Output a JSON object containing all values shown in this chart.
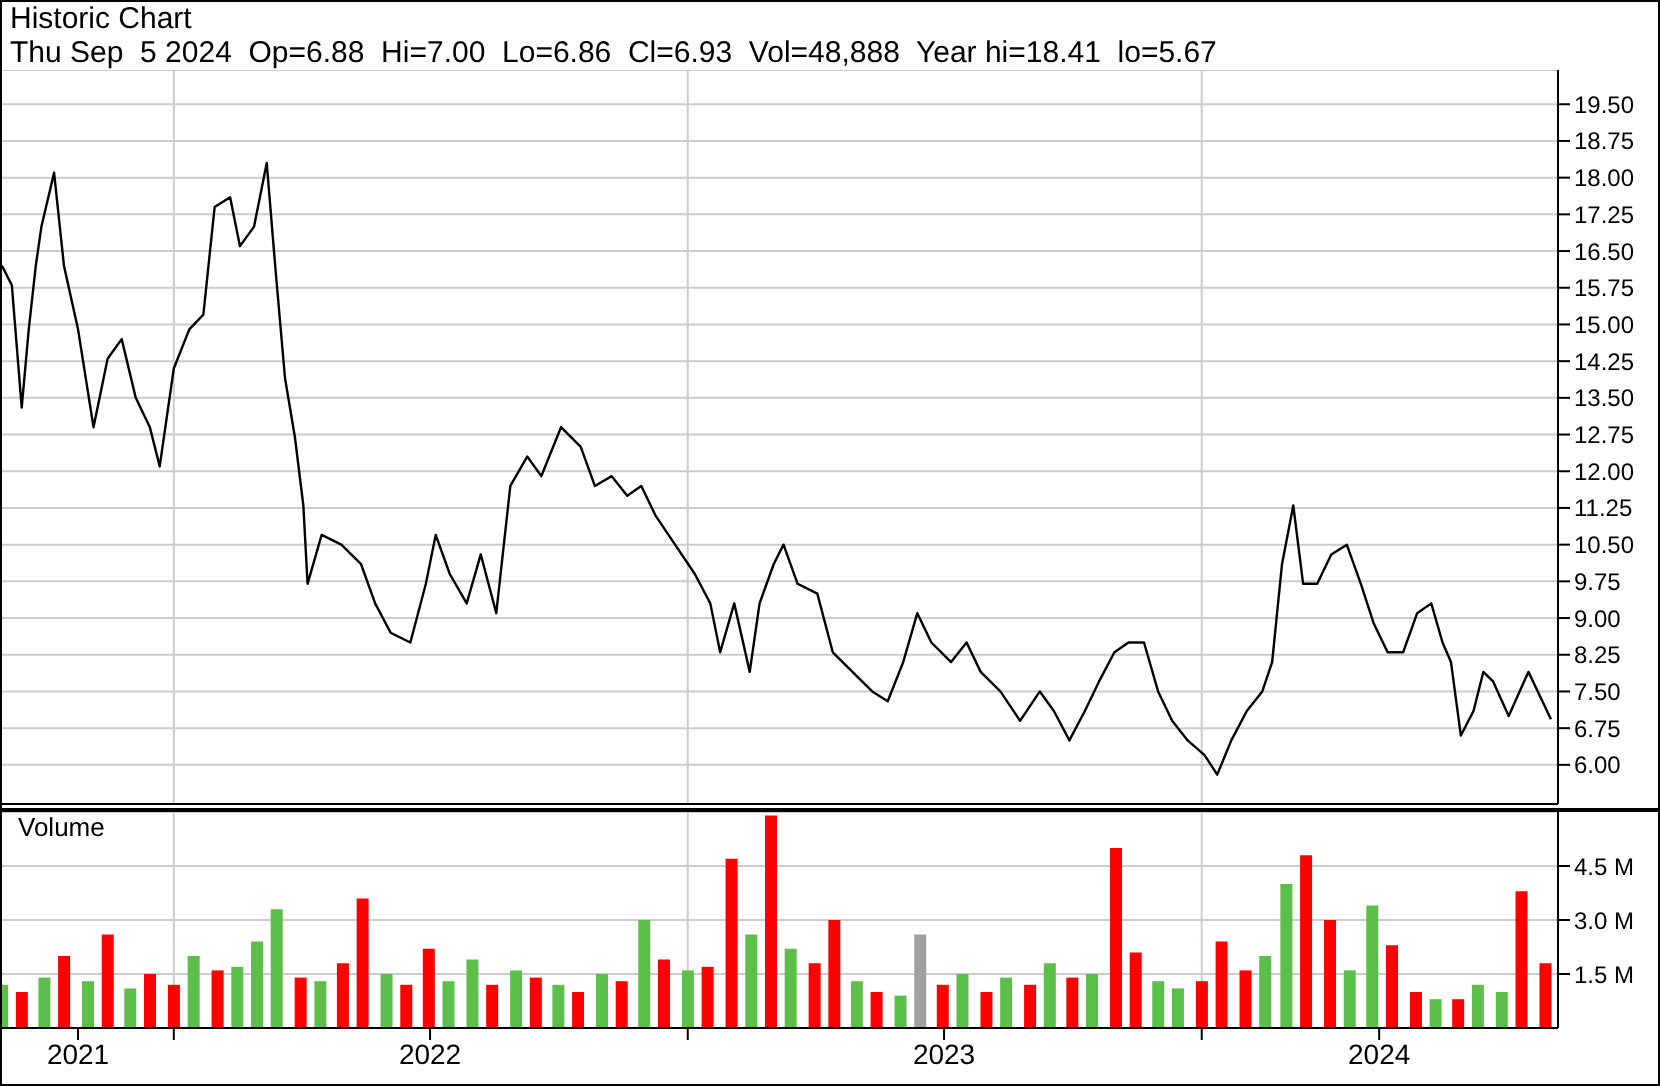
{
  "chart_data": [
    {
      "type": "line",
      "title": "Historic Chart",
      "subtitle": "Thu Sep  5 2024  Op=6.88  Hi=7.00  Lo=6.86  Cl=6.93  Vol=48,888  Year hi=18.41  lo=5.67",
      "x": [
        "2021-09-01",
        "2021-09-08",
        "2021-09-15",
        "2021-09-20",
        "2021-09-25",
        "2021-09-29",
        "2021-10-08",
        "2021-10-15",
        "2021-10-25",
        "2021-11-05",
        "2021-11-15",
        "2021-11-25",
        "2021-12-05",
        "2021-12-15",
        "2021-12-22",
        "2022-01-01",
        "2022-01-12",
        "2022-01-22",
        "2022-01-30",
        "2022-02-10",
        "2022-02-17",
        "2022-02-27",
        "2022-03-08",
        "2022-03-14",
        "2022-03-21",
        "2022-03-28",
        "2022-04-03",
        "2022-04-06",
        "2022-04-16",
        "2022-04-30",
        "2022-05-14",
        "2022-05-24",
        "2022-06-04",
        "2022-06-18",
        "2022-06-29",
        "2022-07-06",
        "2022-07-16",
        "2022-07-28",
        "2022-08-07",
        "2022-08-18",
        "2022-08-28",
        "2022-09-09",
        "2022-09-19",
        "2022-10-03",
        "2022-10-17",
        "2022-10-27",
        "2022-11-08",
        "2022-11-19",
        "2022-11-29",
        "2022-12-09",
        "2022-12-23",
        "2023-01-06",
        "2023-01-17",
        "2023-01-24",
        "2023-02-03",
        "2023-02-14",
        "2023-02-21",
        "2023-03-03",
        "2023-03-10",
        "2023-03-20",
        "2023-04-03",
        "2023-04-14",
        "2023-04-28",
        "2023-05-12",
        "2023-05-23",
        "2023-06-03",
        "2023-06-13",
        "2023-06-23",
        "2023-07-07",
        "2023-07-18",
        "2023-07-28",
        "2023-08-11",
        "2023-08-25",
        "2023-09-08",
        "2023-09-18",
        "2023-09-29",
        "2023-10-10",
        "2023-10-20",
        "2023-10-31",
        "2023-11-10",
        "2023-11-21",
        "2023-12-01",
        "2023-12-11",
        "2023-12-22",
        "2024-01-03",
        "2024-01-12",
        "2024-01-22",
        "2024-02-02",
        "2024-02-13",
        "2024-02-20",
        "2024-02-27",
        "2024-03-06",
        "2024-03-13",
        "2024-03-23",
        "2024-04-02",
        "2024-04-13",
        "2024-04-23",
        "2024-05-02",
        "2024-05-12",
        "2024-05-23",
        "2024-06-02",
        "2024-06-12",
        "2024-06-20",
        "2024-06-26",
        "2024-07-03",
        "2024-07-12",
        "2024-07-19",
        "2024-07-26",
        "2024-08-06",
        "2024-08-20",
        "2024-09-05"
      ],
      "series": [
        {
          "color": "#000000",
          "values": [
            16.2,
            15.8,
            13.3,
            14.9,
            16.2,
            17.0,
            18.1,
            16.2,
            14.9,
            12.9,
            14.3,
            14.7,
            13.5,
            12.9,
            12.1,
            14.1,
            14.9,
            15.2,
            17.4,
            17.6,
            16.6,
            17.0,
            18.3,
            16.2,
            13.9,
            12.7,
            11.3,
            9.7,
            10.7,
            10.5,
            10.1,
            9.3,
            8.7,
            8.5,
            9.7,
            10.7,
            9.9,
            9.3,
            10.3,
            9.1,
            11.7,
            12.3,
            11.9,
            12.9,
            12.5,
            11.7,
            11.9,
            11.5,
            11.7,
            11.1,
            10.5,
            9.9,
            9.3,
            8.3,
            9.3,
            7.9,
            9.3,
            10.1,
            10.5,
            9.7,
            9.5,
            8.3,
            7.9,
            7.5,
            7.3,
            8.1,
            9.1,
            8.5,
            8.1,
            8.5,
            7.9,
            7.5,
            6.9,
            7.5,
            7.1,
            6.5,
            7.1,
            7.7,
            8.3,
            8.5,
            8.5,
            7.5,
            6.9,
            6.5,
            6.2,
            5.8,
            6.5,
            7.1,
            7.5,
            8.1,
            10.1,
            11.3,
            9.7,
            9.7,
            10.3,
            10.5,
            9.7,
            8.9,
            8.3,
            8.3,
            9.1,
            9.3,
            8.5,
            8.1,
            6.6,
            7.1,
            7.9,
            7.7,
            7.0,
            7.9,
            6.93
          ]
        }
      ],
      "xlim": [
        "2021-09-01",
        "2024-09-10"
      ],
      "xticks": [
        {
          "value": "2022-01-01",
          "label": null
        },
        {
          "value": "2023-01-01",
          "label": null
        },
        {
          "value": "2024-01-01",
          "label": null
        }
      ],
      "ylim": [
        5.2,
        20.2
      ],
      "yticks": [
        {
          "value": 6,
          "label": "6.00"
        },
        {
          "value": 6.75,
          "label": "6.75"
        },
        {
          "value": 7.5,
          "label": "7.50"
        },
        {
          "value": 8.25,
          "label": "8.25"
        },
        {
          "value": 9,
          "label": "9.00"
        },
        {
          "value": 9.75,
          "label": "9.75"
        },
        {
          "value": 10.5,
          "label": "10.50"
        },
        {
          "value": 11.25,
          "label": "11.25"
        },
        {
          "value": 12,
          "label": "12.00"
        },
        {
          "value": 12.75,
          "label": "12.75"
        },
        {
          "value": 13.5,
          "label": "13.50"
        },
        {
          "value": 14.25,
          "label": "14.25"
        },
        {
          "value": 15,
          "label": "15.00"
        },
        {
          "value": 15.75,
          "label": "15.75"
        },
        {
          "value": 16.5,
          "label": "16.50"
        },
        {
          "value": 17.25,
          "label": "17.25"
        },
        {
          "value": 18,
          "label": "18.00"
        },
        {
          "value": 18.75,
          "label": "18.75"
        },
        {
          "value": 19.5,
          "label": "19.50"
        }
      ],
      "grid": true,
      "marker": "none",
      "line_style": "solid",
      "tick_labels": "y"
    },
    {
      "type": "bar",
      "title": "Volume",
      "x": [
        "2021-09-01",
        "2021-09-15",
        "2021-10-01",
        "2021-10-15",
        "2021-11-01",
        "2021-11-15",
        "2021-12-01",
        "2021-12-15",
        "2022-01-01",
        "2022-01-15",
        "2022-02-01",
        "2022-02-15",
        "2022-03-01",
        "2022-03-15",
        "2022-04-01",
        "2022-04-15",
        "2022-05-01",
        "2022-05-15",
        "2022-06-01",
        "2022-06-15",
        "2022-07-01",
        "2022-07-15",
        "2022-08-01",
        "2022-08-15",
        "2022-09-01",
        "2022-09-15",
        "2022-10-01",
        "2022-10-15",
        "2022-11-01",
        "2022-11-15",
        "2022-12-01",
        "2022-12-15",
        "2023-01-01",
        "2023-01-15",
        "2023-02-01",
        "2023-02-15",
        "2023-03-01",
        "2023-03-15",
        "2023-04-01",
        "2023-04-15",
        "2023-05-01",
        "2023-05-15",
        "2023-06-01",
        "2023-06-15",
        "2023-07-01",
        "2023-07-15",
        "2023-08-01",
        "2023-08-15",
        "2023-09-01",
        "2023-09-15",
        "2023-10-01",
        "2023-10-15",
        "2023-11-01",
        "2023-11-15",
        "2023-12-01",
        "2023-12-15",
        "2024-01-01",
        "2024-01-15",
        "2024-02-01",
        "2024-02-15",
        "2024-03-01",
        "2024-03-15",
        "2024-04-01",
        "2024-04-15",
        "2024-05-01",
        "2024-05-15",
        "2024-06-01",
        "2024-06-15",
        "2024-07-01",
        "2024-07-15",
        "2024-08-01",
        "2024-08-15",
        "2024-09-01"
      ],
      "series": [
        {
          "values": [
            1.2,
            1.0,
            1.4,
            2.0,
            1.3,
            2.6,
            1.1,
            1.5,
            1.2,
            2.0,
            1.6,
            1.7,
            2.4,
            3.3,
            1.4,
            1.3,
            1.8,
            3.6,
            1.5,
            1.2,
            2.2,
            1.3,
            1.9,
            1.2,
            1.6,
            1.4,
            1.2,
            1.0,
            1.5,
            1.3,
            3.0,
            1.9,
            1.6,
            1.7,
            4.7,
            2.6,
            5.9,
            2.2,
            1.8,
            3.0,
            1.3,
            1.0,
            0.9,
            2.6,
            1.2,
            1.5,
            1.0,
            1.4,
            1.2,
            1.8,
            1.4,
            1.5,
            5.0,
            2.1,
            1.3,
            1.1,
            1.3,
            2.4,
            1.6,
            2.0,
            4.0,
            4.8,
            3.0,
            1.6,
            3.4,
            2.3,
            1.0,
            0.8,
            0.8,
            1.2,
            1.0,
            3.8,
            1.8
          ],
          "colors": [
            "#5cbf4a",
            "#ff0000",
            "#5cbf4a",
            "#ff0000",
            "#5cbf4a",
            "#ff0000",
            "#5cbf4a",
            "#ff0000",
            "#ff0000",
            "#5cbf4a",
            "#ff0000",
            "#5cbf4a",
            "#5cbf4a",
            "#5cbf4a",
            "#ff0000",
            "#5cbf4a",
            "#ff0000",
            "#ff0000",
            "#5cbf4a",
            "#ff0000",
            "#ff0000",
            "#5cbf4a",
            "#5cbf4a",
            "#ff0000",
            "#5cbf4a",
            "#ff0000",
            "#5cbf4a",
            "#ff0000",
            "#5cbf4a",
            "#ff0000",
            "#5cbf4a",
            "#ff0000",
            "#5cbf4a",
            "#ff0000",
            "#ff0000",
            "#5cbf4a",
            "#ff0000",
            "#5cbf4a",
            "#ff0000",
            "#ff0000",
            "#5cbf4a",
            "#ff0000",
            "#5cbf4a",
            "#a0a0a0",
            "#ff0000",
            "#5cbf4a",
            "#ff0000",
            "#5cbf4a",
            "#ff0000",
            "#5cbf4a",
            "#ff0000",
            "#5cbf4a",
            "#ff0000",
            "#ff0000",
            "#5cbf4a",
            "#5cbf4a",
            "#ff0000",
            "#ff0000",
            "#ff0000",
            "#5cbf4a",
            "#5cbf4a",
            "#ff0000",
            "#ff0000",
            "#5cbf4a",
            "#5cbf4a",
            "#ff0000",
            "#ff0000",
            "#5cbf4a",
            "#ff0000",
            "#5cbf4a",
            "#5cbf4a",
            "#ff0000",
            "#ff0000"
          ]
        }
      ],
      "xlim": [
        "2021-09-01",
        "2024-09-10"
      ],
      "xticks": [
        {
          "value": "2021-10-25",
          "label": "2021"
        },
        {
          "value": "2022-01-01",
          "label": null
        },
        {
          "value": "2022-07-02",
          "label": "2022"
        },
        {
          "value": "2023-01-01",
          "label": null
        },
        {
          "value": "2023-07-02",
          "label": "2023"
        },
        {
          "value": "2024-01-01",
          "label": null
        },
        {
          "value": "2024-05-06",
          "label": "2024"
        }
      ],
      "ylim": [
        0,
        6
      ],
      "yticks": [
        {
          "value": 1.5,
          "label": "1.5 M"
        },
        {
          "value": 3,
          "label": "3.0 M"
        },
        {
          "value": 4.5,
          "label": "4.5 M"
        }
      ],
      "grid": true
    }
  ]
}
